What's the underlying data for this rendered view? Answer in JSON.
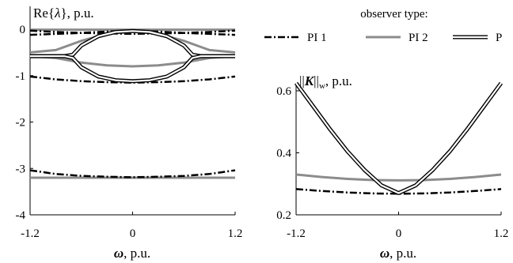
{
  "legend": {
    "title": "observer type:",
    "items": [
      {
        "label": "PI 1",
        "style": "dash-dot",
        "color": "#000000"
      },
      {
        "label": "PI 2",
        "style": "solid",
        "color": "#8c8c8c"
      },
      {
        "label": "P",
        "style": "double",
        "color": "#000000"
      }
    ]
  },
  "chart_data": [
    {
      "type": "line",
      "ylabel_prefix": "Re",
      "ylabel_symbol": "λ",
      "ylabel_unit": ", p.u.",
      "xlabel_symbol": "ω",
      "xlabel_unit": ", p.u.",
      "xlim": [
        -1.2,
        1.2
      ],
      "ylim": [
        -4,
        0.1
      ],
      "xticks": [
        "-1.2",
        "0",
        "1.2"
      ],
      "yticks": [
        "0",
        "-1",
        "-2",
        "-3",
        "-4"
      ],
      "series": [
        {
          "observer": "PI 1",
          "x": [
            -1.2,
            -0.9,
            -0.6,
            -0.3,
            0,
            0.3,
            0.6,
            0.9,
            1.2
          ],
          "y": [
            -1.02,
            -1.08,
            -1.12,
            -1.14,
            -1.15,
            -1.14,
            -1.12,
            -1.08,
            -1.02
          ]
        },
        {
          "observer": "PI 1",
          "x": [
            -1.2,
            -0.9,
            -0.6,
            -0.3,
            0,
            0.3,
            0.6,
            0.9,
            1.2
          ],
          "y": [
            -3.04,
            -3.12,
            -3.16,
            -3.18,
            -3.19,
            -3.18,
            -3.16,
            -3.12,
            -3.04
          ]
        },
        {
          "observer": "PI 1",
          "x": [
            -1.2,
            -0.9,
            -0.6,
            -0.3,
            0,
            0.3,
            0.6,
            0.9,
            1.2
          ],
          "y": [
            -0.03,
            -0.06,
            -0.08,
            -0.09,
            -0.1,
            -0.09,
            -0.08,
            -0.06,
            -0.03
          ]
        },
        {
          "observer": "PI 1",
          "x": [
            -1.2,
            -0.9,
            -0.6,
            -0.3,
            0,
            0.3,
            0.6,
            0.9,
            1.2
          ],
          "y": [
            -0.12,
            -0.1,
            -0.08,
            -0.05,
            -0.03,
            -0.05,
            -0.08,
            -0.1,
            -0.12
          ]
        },
        {
          "observer": "PI 2",
          "x": [
            -1.2,
            -0.9,
            -0.6,
            -0.3,
            0,
            0.3,
            0.6,
            0.9,
            1.2
          ],
          "y": [
            -0.01,
            -0.01,
            -0.01,
            -0.01,
            -0.01,
            -0.01,
            -0.01,
            -0.01,
            -0.01
          ]
        },
        {
          "observer": "PI 2",
          "x": [
            -1.2,
            -0.9,
            -0.6,
            -0.3,
            0,
            0.3,
            0.6,
            0.9,
            1.2
          ],
          "y": [
            -0.5,
            -0.45,
            -0.25,
            -0.1,
            -0.05,
            -0.1,
            -0.25,
            -0.45,
            -0.5
          ]
        },
        {
          "observer": "PI 2",
          "x": [
            -1.2,
            -0.9,
            -0.6,
            -0.3,
            0,
            0.3,
            0.6,
            0.9,
            1.2
          ],
          "y": [
            -0.58,
            -0.62,
            -0.72,
            -0.78,
            -0.8,
            -0.78,
            -0.72,
            -0.62,
            -0.58
          ]
        },
        {
          "observer": "PI 2",
          "x": [
            -1.2,
            -0.9,
            -0.6,
            -0.3,
            0,
            0.3,
            0.6,
            0.9,
            1.2
          ],
          "y": [
            -3.2,
            -3.2,
            -3.2,
            -3.2,
            -3.2,
            -3.2,
            -3.2,
            -3.2,
            -3.2
          ]
        },
        {
          "observer": "P",
          "x": [
            -1.2,
            -0.8,
            -0.7,
            -0.65,
            -0.6,
            -0.4,
            -0.2,
            0,
            0.2,
            0.4,
            0.6,
            0.65,
            0.7,
            0.8,
            1.2
          ],
          "y": [
            -0.58,
            -0.58,
            -0.55,
            -0.45,
            -0.35,
            -0.15,
            -0.06,
            -0.04,
            -0.06,
            -0.15,
            -0.35,
            -0.45,
            -0.55,
            -0.58,
            -0.58
          ]
        },
        {
          "observer": "P",
          "x": [
            -1.2,
            -0.8,
            -0.7,
            -0.65,
            -0.6,
            -0.4,
            -0.2,
            0,
            0.2,
            0.4,
            0.6,
            0.65,
            0.7,
            0.8,
            1.2
          ],
          "y": [
            -0.58,
            -0.58,
            -0.62,
            -0.72,
            -0.82,
            -1.02,
            -1.1,
            -1.12,
            -1.1,
            -1.02,
            -0.82,
            -0.72,
            -0.62,
            -0.58,
            -0.58
          ]
        }
      ]
    },
    {
      "type": "line",
      "ylabel": "||K||w, p.u.",
      "ylabel_norm": "||",
      "ylabel_symbol": "K",
      "ylabel_sub": "w",
      "ylabel_unit": ", p.u.",
      "xlabel_symbol": "ω",
      "xlabel_unit": ", p.u.",
      "xlim": [
        -1.2,
        1.2
      ],
      "ylim": [
        0.2,
        0.65
      ],
      "xticks": [
        "-1.2",
        "0",
        "1.2"
      ],
      "yticks": [
        "0.6",
        "0.4",
        "0.2"
      ],
      "series": [
        {
          "observer": "PI 1",
          "x": [
            -1.2,
            -0.9,
            -0.6,
            -0.3,
            0,
            0.3,
            0.6,
            0.9,
            1.2
          ],
          "y": [
            0.283,
            0.277,
            0.272,
            0.269,
            0.268,
            0.269,
            0.272,
            0.277,
            0.283
          ]
        },
        {
          "observer": "PI 2",
          "x": [
            -1.2,
            -0.9,
            -0.6,
            -0.3,
            0,
            0.3,
            0.6,
            0.9,
            1.2
          ],
          "y": [
            0.33,
            0.322,
            0.316,
            0.312,
            0.311,
            0.312,
            0.316,
            0.322,
            0.33
          ]
        },
        {
          "observer": "P",
          "x": [
            -1.2,
            -1.0,
            -0.8,
            -0.6,
            -0.4,
            -0.2,
            0,
            0.2,
            0.4,
            0.6,
            0.8,
            1.0,
            1.2
          ],
          "y": [
            0.625,
            0.55,
            0.475,
            0.405,
            0.345,
            0.295,
            0.27,
            0.295,
            0.345,
            0.405,
            0.475,
            0.55,
            0.625
          ]
        }
      ]
    }
  ]
}
